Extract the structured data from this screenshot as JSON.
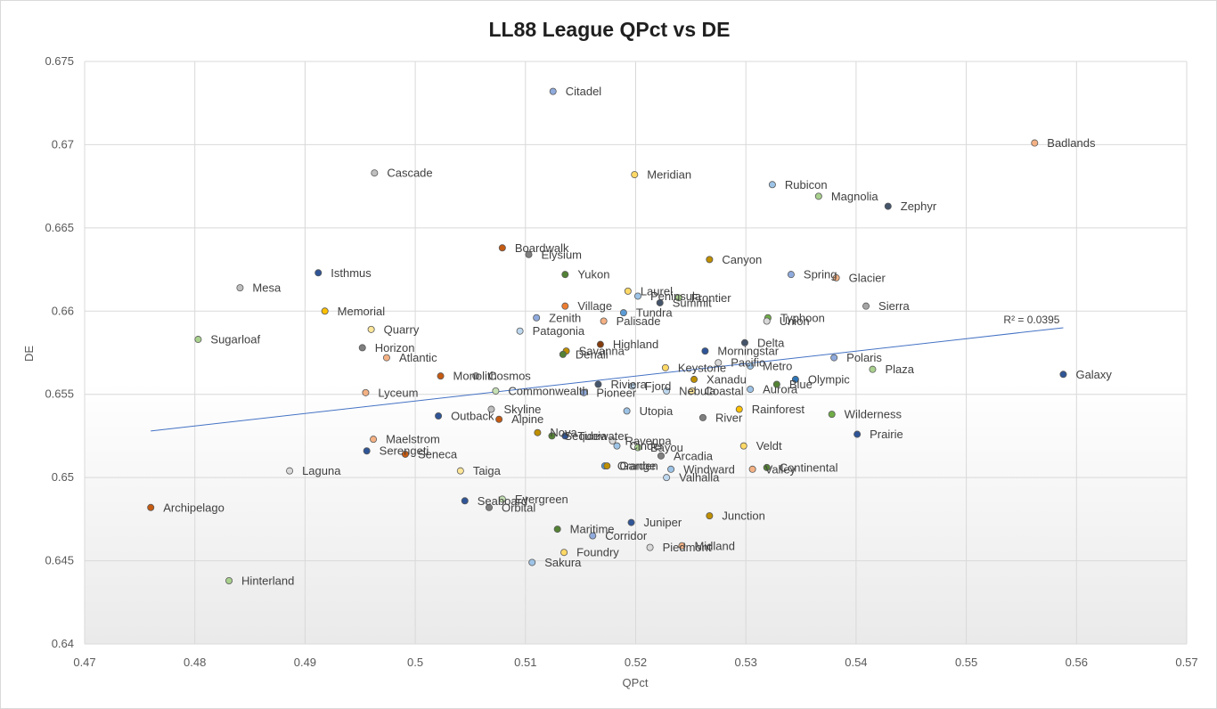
{
  "chart_data": {
    "type": "scatter",
    "title": "LL88 League QPct vs DE",
    "xlabel": "QPct",
    "ylabel": "DE",
    "xlim": [
      0.47,
      0.57
    ],
    "ylim": [
      0.64,
      0.675
    ],
    "x_ticks": [
      "0.47",
      "0.48",
      "0.49",
      "0.5",
      "0.51",
      "0.52",
      "0.53",
      "0.54",
      "0.55",
      "0.56",
      "0.57"
    ],
    "y_ticks": [
      "0.64",
      "0.645",
      "0.65",
      "0.655",
      "0.66",
      "0.665",
      "0.67",
      "0.675"
    ],
    "grid": "horizontal and vertical",
    "legend": "none",
    "trendline": {
      "type": "linear",
      "r2_label": "R² = 0.0395",
      "x_start": 0.476,
      "y_start": 0.6528,
      "x_end": 0.5588,
      "y_end": 0.659,
      "color": "#4472c4"
    },
    "points": [
      {
        "name": "Citadel",
        "x": 0.5125,
        "y": 0.6732,
        "color": "#8faadc"
      },
      {
        "name": "Badlands",
        "x": 0.5562,
        "y": 0.6701,
        "color": "#f4b183"
      },
      {
        "name": "Cascade",
        "x": 0.4963,
        "y": 0.6683,
        "color": "#bfbfbf"
      },
      {
        "name": "Meridian",
        "x": 0.5199,
        "y": 0.6682,
        "color": "#ffd966"
      },
      {
        "name": "Rubicon",
        "x": 0.5324,
        "y": 0.6676,
        "color": "#9dc3e6"
      },
      {
        "name": "Magnolia",
        "x": 0.5366,
        "y": 0.6669,
        "color": "#a9d18e"
      },
      {
        "name": "Zephyr",
        "x": 0.5429,
        "y": 0.6663,
        "color": "#44546a"
      },
      {
        "name": "Boardwalk",
        "x": 0.5079,
        "y": 0.6638,
        "color": "#c55a11"
      },
      {
        "name": "Elysium",
        "x": 0.5103,
        "y": 0.6634,
        "color": "#7f7f7f"
      },
      {
        "name": "Canyon",
        "x": 0.5267,
        "y": 0.6631,
        "color": "#bf8f00"
      },
      {
        "name": "Isthmus",
        "x": 0.4912,
        "y": 0.6623,
        "color": "#2f5597"
      },
      {
        "name": "Yukon",
        "x": 0.5136,
        "y": 0.6622,
        "color": "#548235"
      },
      {
        "name": "Spring",
        "x": 0.5341,
        "y": 0.6622,
        "color": "#8faadc"
      },
      {
        "name": "Glacier",
        "x": 0.5382,
        "y": 0.662,
        "color": "#f4b183"
      },
      {
        "name": "Mesa",
        "x": 0.4841,
        "y": 0.6614,
        "color": "#bfbfbf"
      },
      {
        "name": "Laurel",
        "x": 0.5193,
        "y": 0.6612,
        "color": "#ffd966"
      },
      {
        "name": "Peninsula",
        "x": 0.5202,
        "y": 0.6609,
        "color": "#9dc3e6"
      },
      {
        "name": "Frontier",
        "x": 0.5239,
        "y": 0.6608,
        "color": "#a9d18e"
      },
      {
        "name": "Summit",
        "x": 0.5222,
        "y": 0.6605,
        "color": "#44546a"
      },
      {
        "name": "Village",
        "x": 0.5136,
        "y": 0.6603,
        "color": "#ed7d31"
      },
      {
        "name": "Sierra",
        "x": 0.5409,
        "y": 0.6603,
        "color": "#a5a5a5"
      },
      {
        "name": "Memorial",
        "x": 0.4918,
        "y": 0.66,
        "color": "#ffc000"
      },
      {
        "name": "Tundra",
        "x": 0.5189,
        "y": 0.6599,
        "color": "#5b9bd5"
      },
      {
        "name": "Zenith",
        "x": 0.511,
        "y": 0.6596,
        "color": "#8faadc"
      },
      {
        "name": "Typhoon",
        "x": 0.532,
        "y": 0.6596,
        "color": "#70ad47"
      },
      {
        "name": "Palisade",
        "x": 0.5171,
        "y": 0.6594,
        "color": "#f4b183"
      },
      {
        "name": "Union",
        "x": 0.5319,
        "y": 0.6594,
        "color": "#d9d9d9"
      },
      {
        "name": "Quarry",
        "x": 0.496,
        "y": 0.6589,
        "color": "#ffe699"
      },
      {
        "name": "Patagonia",
        "x": 0.5095,
        "y": 0.6588,
        "color": "#bdd7ee"
      },
      {
        "name": "Sugarloaf",
        "x": 0.4803,
        "y": 0.6583,
        "color": "#a9d18e"
      },
      {
        "name": "Delta",
        "x": 0.5299,
        "y": 0.6581,
        "color": "#44546a"
      },
      {
        "name": "Highland",
        "x": 0.5168,
        "y": 0.658,
        "color": "#843c0c"
      },
      {
        "name": "Horizon",
        "x": 0.4952,
        "y": 0.6578,
        "color": "#7f7f7f"
      },
      {
        "name": "Savanna",
        "x": 0.5137,
        "y": 0.6576,
        "color": "#bf8f00"
      },
      {
        "name": "Morningstar",
        "x": 0.5263,
        "y": 0.6576,
        "color": "#2f5597"
      },
      {
        "name": "Denali",
        "x": 0.5134,
        "y": 0.6574,
        "color": "#548235"
      },
      {
        "name": "Atlantic",
        "x": 0.4974,
        "y": 0.6572,
        "color": "#f4b183"
      },
      {
        "name": "Polaris",
        "x": 0.538,
        "y": 0.6572,
        "color": "#8faadc"
      },
      {
        "name": "Pacific",
        "x": 0.5275,
        "y": 0.6569,
        "color": "#d9d9d9"
      },
      {
        "name": "Metro",
        "x": 0.5304,
        "y": 0.6567,
        "color": "#9dc3e6"
      },
      {
        "name": "Keystone",
        "x": 0.5227,
        "y": 0.6566,
        "color": "#ffd966"
      },
      {
        "name": "Plaza",
        "x": 0.5415,
        "y": 0.6565,
        "color": "#a9d18e"
      },
      {
        "name": "Galaxy",
        "x": 0.5588,
        "y": 0.6562,
        "color": "#2f5597"
      },
      {
        "name": "Monolith",
        "x": 0.5023,
        "y": 0.6561,
        "color": "#c55a11"
      },
      {
        "name": "Cosmos",
        "x": 0.5055,
        "y": 0.6561,
        "color": "#a5a5a5"
      },
      {
        "name": "Olympic",
        "x": 0.5345,
        "y": 0.6559,
        "color": "#2e75b6"
      },
      {
        "name": "Xanadu",
        "x": 0.5253,
        "y": 0.6559,
        "color": "#bf8f00"
      },
      {
        "name": "Riviera",
        "x": 0.5166,
        "y": 0.6556,
        "color": "#44546a"
      },
      {
        "name": "Blue",
        "x": 0.5328,
        "y": 0.6556,
        "color": "#548235"
      },
      {
        "name": "Fjord",
        "x": 0.5197,
        "y": 0.6555,
        "color": "#bdd7ee"
      },
      {
        "name": "Aurora",
        "x": 0.5304,
        "y": 0.6553,
        "color": "#9dc3e6"
      },
      {
        "name": "Commonwealth",
        "x": 0.5073,
        "y": 0.6552,
        "color": "#c5e0b4"
      },
      {
        "name": "Nebula",
        "x": 0.5228,
        "y": 0.6552,
        "color": "#bdd7ee"
      },
      {
        "name": "Coastal",
        "x": 0.5251,
        "y": 0.6552,
        "color": "#ffe699"
      },
      {
        "name": "Lyceum",
        "x": 0.4955,
        "y": 0.6551,
        "color": "#f4b183"
      },
      {
        "name": "Pioneer",
        "x": 0.5153,
        "y": 0.6551,
        "color": "#8faadc"
      },
      {
        "name": "Skyline",
        "x": 0.5069,
        "y": 0.6541,
        "color": "#bfbfbf"
      },
      {
        "name": "Utopia",
        "x": 0.5192,
        "y": 0.654,
        "color": "#9dc3e6"
      },
      {
        "name": "Rainforest",
        "x": 0.5294,
        "y": 0.6541,
        "color": "#ffc000"
      },
      {
        "name": "Outback",
        "x": 0.5021,
        "y": 0.6537,
        "color": "#2f5597"
      },
      {
        "name": "Alpine",
        "x": 0.5076,
        "y": 0.6535,
        "color": "#c55a11"
      },
      {
        "name": "River",
        "x": 0.5261,
        "y": 0.6536,
        "color": "#7f7f7f"
      },
      {
        "name": "Wilderness",
        "x": 0.5378,
        "y": 0.6538,
        "color": "#70ad47"
      },
      {
        "name": "Prairie",
        "x": 0.5401,
        "y": 0.6526,
        "color": "#2f5597"
      },
      {
        "name": "Nova",
        "x": 0.5111,
        "y": 0.6527,
        "color": "#bf8f00"
      },
      {
        "name": "Sequoia",
        "x": 0.5124,
        "y": 0.6525,
        "color": "#548235"
      },
      {
        "name": "Tidewater",
        "x": 0.5136,
        "y": 0.6525,
        "color": "#2f5597"
      },
      {
        "name": "Ravenna",
        "x": 0.5179,
        "y": 0.6522,
        "color": "#d9d9d9"
      },
      {
        "name": "Maelstrom",
        "x": 0.4962,
        "y": 0.6523,
        "color": "#f4b183"
      },
      {
        "name": "Veldt",
        "x": 0.5298,
        "y": 0.6519,
        "color": "#ffd966"
      },
      {
        "name": "Cinder",
        "x": 0.5183,
        "y": 0.6519,
        "color": "#9dc3e6"
      },
      {
        "name": "Bayou",
        "x": 0.5202,
        "y": 0.6518,
        "color": "#a9d18e"
      },
      {
        "name": "Serengeti",
        "x": 0.4956,
        "y": 0.6516,
        "color": "#2f5597"
      },
      {
        "name": "Seneca",
        "x": 0.4991,
        "y": 0.6514,
        "color": "#c55a11"
      },
      {
        "name": "Arcadia",
        "x": 0.5223,
        "y": 0.6513,
        "color": "#7f7f7f"
      },
      {
        "name": "Orange",
        "x": 0.5172,
        "y": 0.6507,
        "color": "#5b9bd5"
      },
      {
        "name": "Garden",
        "x": 0.5174,
        "y": 0.6507,
        "color": "#bf8f00"
      },
      {
        "name": "Continental",
        "x": 0.5319,
        "y": 0.6506,
        "color": "#548235"
      },
      {
        "name": "Windward",
        "x": 0.5232,
        "y": 0.6505,
        "color": "#9dc3e6"
      },
      {
        "name": "Valley",
        "x": 0.5306,
        "y": 0.6505,
        "color": "#f4b183"
      },
      {
        "name": "Laguna",
        "x": 0.4886,
        "y": 0.6504,
        "color": "#d9d9d9"
      },
      {
        "name": "Taiga",
        "x": 0.5041,
        "y": 0.6504,
        "color": "#ffe699"
      },
      {
        "name": "Valhalla",
        "x": 0.5228,
        "y": 0.65,
        "color": "#bdd7ee"
      },
      {
        "name": "Evergreen",
        "x": 0.5079,
        "y": 0.6487,
        "color": "#c5e0b4"
      },
      {
        "name": "Seaboard",
        "x": 0.5045,
        "y": 0.6486,
        "color": "#2f5597"
      },
      {
        "name": "Archipelago",
        "x": 0.476,
        "y": 0.6482,
        "color": "#c55a11"
      },
      {
        "name": "Orbital",
        "x": 0.5067,
        "y": 0.6482,
        "color": "#7f7f7f"
      },
      {
        "name": "Junction",
        "x": 0.5267,
        "y": 0.6477,
        "color": "#bf8f00"
      },
      {
        "name": "Juniper",
        "x": 0.5196,
        "y": 0.6473,
        "color": "#2f5597"
      },
      {
        "name": "Maritime",
        "x": 0.5129,
        "y": 0.6469,
        "color": "#548235"
      },
      {
        "name": "Corridor",
        "x": 0.5161,
        "y": 0.6465,
        "color": "#8faadc"
      },
      {
        "name": "Piedmont",
        "x": 0.5213,
        "y": 0.6458,
        "color": "#d9d9d9"
      },
      {
        "name": "Midland",
        "x": 0.5242,
        "y": 0.6459,
        "color": "#f4b183"
      },
      {
        "name": "Foundry",
        "x": 0.5135,
        "y": 0.6455,
        "color": "#ffd966"
      },
      {
        "name": "Sakura",
        "x": 0.5106,
        "y": 0.6449,
        "color": "#9dc3e6"
      },
      {
        "name": "Hinterland",
        "x": 0.4831,
        "y": 0.6438,
        "color": "#a9d18e"
      }
    ]
  }
}
